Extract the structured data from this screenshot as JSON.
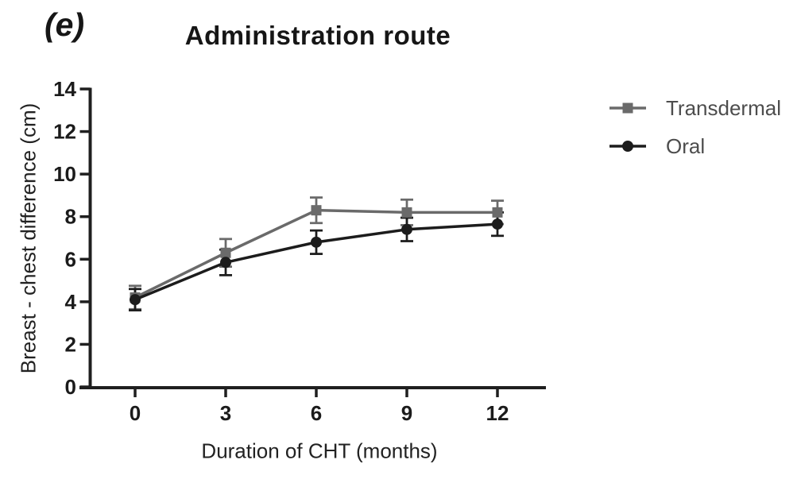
{
  "figure": {
    "panel_label": "(e)"
  },
  "chart_data": {
    "type": "line",
    "title": "Administration route",
    "xlabel": "Duration of CHT (months)",
    "ylabel": "Breast - chest difference (cm)",
    "x": [
      0,
      3,
      6,
      9,
      12
    ],
    "xticks": [
      0,
      3,
      6,
      9,
      12
    ],
    "yticks": [
      0,
      2,
      4,
      6,
      8,
      10,
      12,
      14
    ],
    "xlim": [
      -1.5,
      13.6
    ],
    "ylim": [
      0,
      14
    ],
    "grid": false,
    "legend_position": "right-top",
    "error_bars": true,
    "series": [
      {
        "name": "Transdermal",
        "marker": "square",
        "color": "#6a6a6a",
        "values": [
          4.2,
          6.3,
          8.3,
          8.2,
          8.2
        ],
        "errors": [
          0.55,
          0.65,
          0.6,
          0.6,
          0.55
        ]
      },
      {
        "name": "Oral",
        "marker": "circle",
        "color": "#1c1c1c",
        "values": [
          4.1,
          5.85,
          6.8,
          7.4,
          7.65
        ],
        "errors": [
          0.5,
          0.6,
          0.55,
          0.55,
          0.55
        ]
      }
    ],
    "axis_color": "#1f1f1f",
    "tick_label_color": "#1b1b1b"
  }
}
